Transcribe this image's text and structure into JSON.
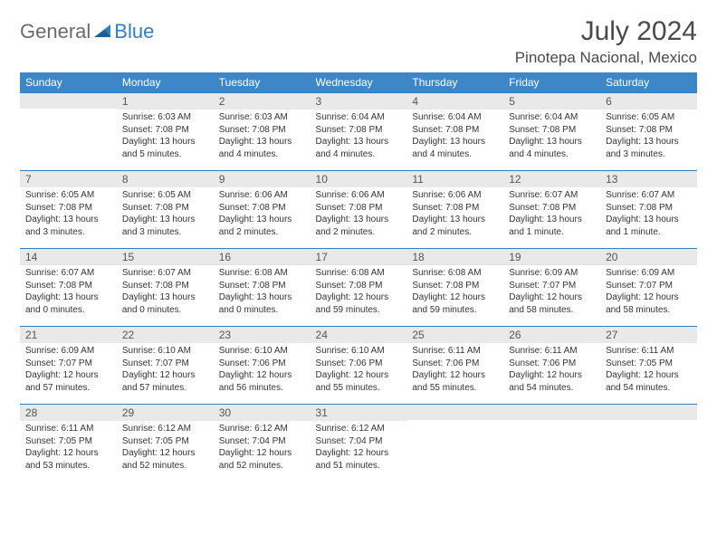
{
  "brand": {
    "part1": "General",
    "part2": "Blue"
  },
  "title": "July 2024",
  "location": "Pinotepa Nacional, Mexico",
  "colors": {
    "header_bg": "#3d87c9",
    "header_text": "#ffffff",
    "daynum_bg": "#e9e9e9",
    "day_border": "#2f7fc2",
    "brand_gray": "#6a6a6a",
    "brand_blue": "#2f7fc2"
  },
  "weekdays": [
    "Sunday",
    "Monday",
    "Tuesday",
    "Wednesday",
    "Thursday",
    "Friday",
    "Saturday"
  ],
  "weeks": [
    [
      null,
      {
        "n": "1",
        "sr": "Sunrise: 6:03 AM",
        "ss": "Sunset: 7:08 PM",
        "dl": "Daylight: 13 hours and 5 minutes."
      },
      {
        "n": "2",
        "sr": "Sunrise: 6:03 AM",
        "ss": "Sunset: 7:08 PM",
        "dl": "Daylight: 13 hours and 4 minutes."
      },
      {
        "n": "3",
        "sr": "Sunrise: 6:04 AM",
        "ss": "Sunset: 7:08 PM",
        "dl": "Daylight: 13 hours and 4 minutes."
      },
      {
        "n": "4",
        "sr": "Sunrise: 6:04 AM",
        "ss": "Sunset: 7:08 PM",
        "dl": "Daylight: 13 hours and 4 minutes."
      },
      {
        "n": "5",
        "sr": "Sunrise: 6:04 AM",
        "ss": "Sunset: 7:08 PM",
        "dl": "Daylight: 13 hours and 4 minutes."
      },
      {
        "n": "6",
        "sr": "Sunrise: 6:05 AM",
        "ss": "Sunset: 7:08 PM",
        "dl": "Daylight: 13 hours and 3 minutes."
      }
    ],
    [
      {
        "n": "7",
        "sr": "Sunrise: 6:05 AM",
        "ss": "Sunset: 7:08 PM",
        "dl": "Daylight: 13 hours and 3 minutes."
      },
      {
        "n": "8",
        "sr": "Sunrise: 6:05 AM",
        "ss": "Sunset: 7:08 PM",
        "dl": "Daylight: 13 hours and 3 minutes."
      },
      {
        "n": "9",
        "sr": "Sunrise: 6:06 AM",
        "ss": "Sunset: 7:08 PM",
        "dl": "Daylight: 13 hours and 2 minutes."
      },
      {
        "n": "10",
        "sr": "Sunrise: 6:06 AM",
        "ss": "Sunset: 7:08 PM",
        "dl": "Daylight: 13 hours and 2 minutes."
      },
      {
        "n": "11",
        "sr": "Sunrise: 6:06 AM",
        "ss": "Sunset: 7:08 PM",
        "dl": "Daylight: 13 hours and 2 minutes."
      },
      {
        "n": "12",
        "sr": "Sunrise: 6:07 AM",
        "ss": "Sunset: 7:08 PM",
        "dl": "Daylight: 13 hours and 1 minute."
      },
      {
        "n": "13",
        "sr": "Sunrise: 6:07 AM",
        "ss": "Sunset: 7:08 PM",
        "dl": "Daylight: 13 hours and 1 minute."
      }
    ],
    [
      {
        "n": "14",
        "sr": "Sunrise: 6:07 AM",
        "ss": "Sunset: 7:08 PM",
        "dl": "Daylight: 13 hours and 0 minutes."
      },
      {
        "n": "15",
        "sr": "Sunrise: 6:07 AM",
        "ss": "Sunset: 7:08 PM",
        "dl": "Daylight: 13 hours and 0 minutes."
      },
      {
        "n": "16",
        "sr": "Sunrise: 6:08 AM",
        "ss": "Sunset: 7:08 PM",
        "dl": "Daylight: 13 hours and 0 minutes."
      },
      {
        "n": "17",
        "sr": "Sunrise: 6:08 AM",
        "ss": "Sunset: 7:08 PM",
        "dl": "Daylight: 12 hours and 59 minutes."
      },
      {
        "n": "18",
        "sr": "Sunrise: 6:08 AM",
        "ss": "Sunset: 7:08 PM",
        "dl": "Daylight: 12 hours and 59 minutes."
      },
      {
        "n": "19",
        "sr": "Sunrise: 6:09 AM",
        "ss": "Sunset: 7:07 PM",
        "dl": "Daylight: 12 hours and 58 minutes."
      },
      {
        "n": "20",
        "sr": "Sunrise: 6:09 AM",
        "ss": "Sunset: 7:07 PM",
        "dl": "Daylight: 12 hours and 58 minutes."
      }
    ],
    [
      {
        "n": "21",
        "sr": "Sunrise: 6:09 AM",
        "ss": "Sunset: 7:07 PM",
        "dl": "Daylight: 12 hours and 57 minutes."
      },
      {
        "n": "22",
        "sr": "Sunrise: 6:10 AM",
        "ss": "Sunset: 7:07 PM",
        "dl": "Daylight: 12 hours and 57 minutes."
      },
      {
        "n": "23",
        "sr": "Sunrise: 6:10 AM",
        "ss": "Sunset: 7:06 PM",
        "dl": "Daylight: 12 hours and 56 minutes."
      },
      {
        "n": "24",
        "sr": "Sunrise: 6:10 AM",
        "ss": "Sunset: 7:06 PM",
        "dl": "Daylight: 12 hours and 55 minutes."
      },
      {
        "n": "25",
        "sr": "Sunrise: 6:11 AM",
        "ss": "Sunset: 7:06 PM",
        "dl": "Daylight: 12 hours and 55 minutes."
      },
      {
        "n": "26",
        "sr": "Sunrise: 6:11 AM",
        "ss": "Sunset: 7:06 PM",
        "dl": "Daylight: 12 hours and 54 minutes."
      },
      {
        "n": "27",
        "sr": "Sunrise: 6:11 AM",
        "ss": "Sunset: 7:05 PM",
        "dl": "Daylight: 12 hours and 54 minutes."
      }
    ],
    [
      {
        "n": "28",
        "sr": "Sunrise: 6:11 AM",
        "ss": "Sunset: 7:05 PM",
        "dl": "Daylight: 12 hours and 53 minutes."
      },
      {
        "n": "29",
        "sr": "Sunrise: 6:12 AM",
        "ss": "Sunset: 7:05 PM",
        "dl": "Daylight: 12 hours and 52 minutes."
      },
      {
        "n": "30",
        "sr": "Sunrise: 6:12 AM",
        "ss": "Sunset: 7:04 PM",
        "dl": "Daylight: 12 hours and 52 minutes."
      },
      {
        "n": "31",
        "sr": "Sunrise: 6:12 AM",
        "ss": "Sunset: 7:04 PM",
        "dl": "Daylight: 12 hours and 51 minutes."
      },
      null,
      null,
      null
    ]
  ]
}
